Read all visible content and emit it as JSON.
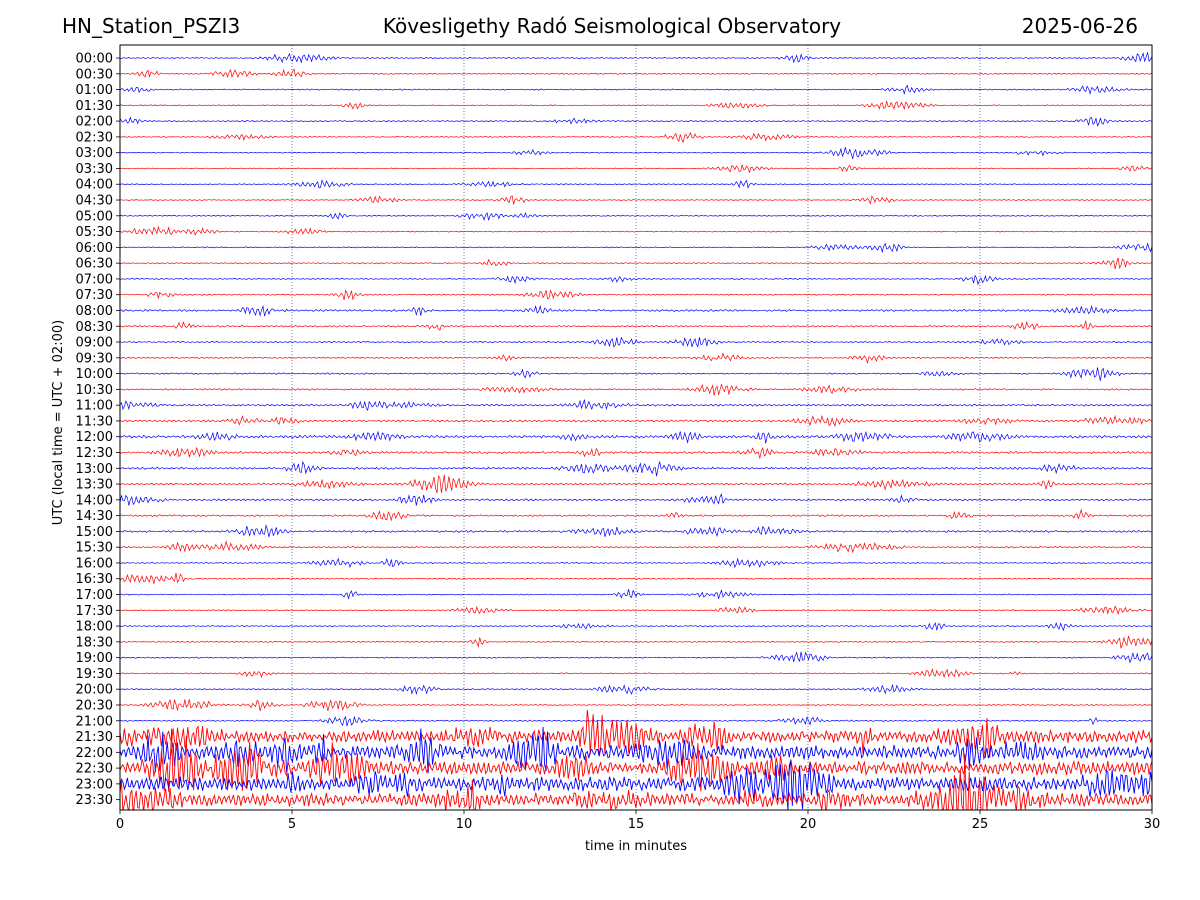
{
  "header": {
    "station": "HN_Station_PSZI3",
    "observatory": "Kövesligethy Radó Seismological Observatory",
    "date": "2025-06-26"
  },
  "chart_data": {
    "type": "line",
    "title": "Kövesligethy Radó Seismological Observatory",
    "xlabel": "time in minutes",
    "ylabel": "UTC (local time = UTC + 02:00)",
    "xlim": [
      0,
      30
    ],
    "xticks": [
      "0",
      "5",
      "10",
      "15",
      "20",
      "25",
      "30"
    ],
    "vertical_gridlines_at": [
      5,
      10,
      15,
      20,
      25
    ],
    "grid": "vertical dotted",
    "trace_colors": [
      "#0000ff",
      "#ff0000"
    ],
    "rows": [
      {
        "label": "00:00",
        "activity": 0.1
      },
      {
        "label": "00:30",
        "activity": 0.08
      },
      {
        "label": "01:00",
        "activity": 0.1
      },
      {
        "label": "01:30",
        "activity": 0.08
      },
      {
        "label": "02:00",
        "activity": 0.12
      },
      {
        "label": "02:30",
        "activity": 0.06
      },
      {
        "label": "03:00",
        "activity": 0.06
      },
      {
        "label": "03:30",
        "activity": 0.06
      },
      {
        "label": "04:00",
        "activity": 0.06
      },
      {
        "label": "04:30",
        "activity": 0.06
      },
      {
        "label": "05:00",
        "activity": 0.06
      },
      {
        "label": "05:30",
        "activity": 0.06
      },
      {
        "label": "06:00",
        "activity": 0.08
      },
      {
        "label": "06:30",
        "activity": 0.06
      },
      {
        "label": "07:00",
        "activity": 0.08
      },
      {
        "label": "07:30",
        "activity": 0.1
      },
      {
        "label": "08:00",
        "activity": 0.25
      },
      {
        "label": "08:30",
        "activity": 0.2
      },
      {
        "label": "09:00",
        "activity": 0.12
      },
      {
        "label": "09:30",
        "activity": 0.12
      },
      {
        "label": "10:00",
        "activity": 0.15
      },
      {
        "label": "10:30",
        "activity": 0.18
      },
      {
        "label": "11:00",
        "activity": 0.25
      },
      {
        "label": "11:30",
        "activity": 0.3
      },
      {
        "label": "12:00",
        "activity": 0.45
      },
      {
        "label": "12:30",
        "activity": 0.3
      },
      {
        "label": "13:00",
        "activity": 0.3
      },
      {
        "label": "13:30",
        "activity": 0.25
      },
      {
        "label": "14:00",
        "activity": 0.28
      },
      {
        "label": "14:30",
        "activity": 0.22
      },
      {
        "label": "15:00",
        "activity": 0.25
      },
      {
        "label": "15:30",
        "activity": 0.15
      },
      {
        "label": "16:00",
        "activity": 0.08
      },
      {
        "label": "16:30",
        "activity": 0.08
      },
      {
        "label": "17:00",
        "activity": 0.08
      },
      {
        "label": "17:30",
        "activity": 0.08
      },
      {
        "label": "18:00",
        "activity": 0.08
      },
      {
        "label": "18:30",
        "activity": 0.08
      },
      {
        "label": "19:00",
        "activity": 0.1
      },
      {
        "label": "19:30",
        "activity": 0.1
      },
      {
        "label": "20:00",
        "activity": 0.1
      },
      {
        "label": "20:30",
        "activity": 0.08
      },
      {
        "label": "21:00",
        "activity": 0.15
      },
      {
        "label": "21:30",
        "activity": 0.9
      },
      {
        "label": "22:00",
        "activity": 1.0
      },
      {
        "label": "22:30",
        "activity": 1.0
      },
      {
        "label": "23:00",
        "activity": 1.0
      },
      {
        "label": "23:30",
        "activity": 0.95
      }
    ]
  }
}
